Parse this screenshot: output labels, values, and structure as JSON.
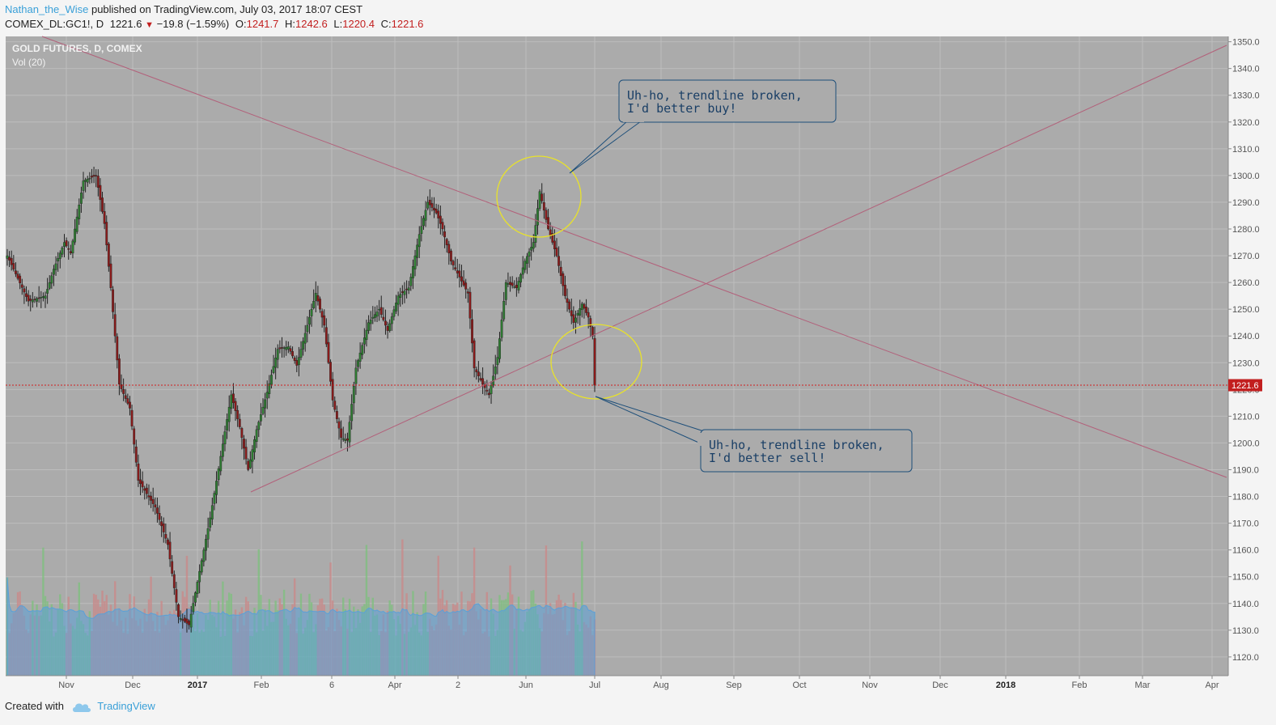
{
  "header": {
    "author": "Nathan_the_Wise",
    "published": "published on TradingView.com, July 03, 2017 18:07 CEST",
    "symbol": "COMEX_DL:GC1!, D",
    "last": "1221.6",
    "change": "−19.8 (−1.59%)",
    "open_label": "O:",
    "open": "1241.7",
    "high_label": "H:",
    "high": "1242.6",
    "low_label": "L:",
    "low": "1220.4",
    "close_label": "C:",
    "close": "1221.6"
  },
  "footer": {
    "created": "Created with",
    "brand": "TradingView"
  },
  "colors": {
    "up": "#2e7d32",
    "down": "#8b1a1a",
    "plot_bg": "#ababab",
    "trend": "#b2607a",
    "ellipse": "#e8e22a",
    "price_line": "#d21f1f",
    "volume_ma": "#5aa0d8"
  },
  "chart_data": {
    "type": "candlestick",
    "title": "GOLD FUTURES, D, COMEX",
    "indicator": "Vol (20)",
    "ylim": [
      1113,
      1352
    ],
    "y_ticks": [
      "1350.0",
      "1340.0",
      "1330.0",
      "1320.0",
      "1310.0",
      "1300.0",
      "1290.0",
      "1280.0",
      "1270.0",
      "1260.0",
      "1250.0",
      "1240.0",
      "1230.0",
      "1220.0",
      "1210.0",
      "1200.0",
      "1190.0",
      "1180.0",
      "1170.0",
      "1160.0",
      "1150.0",
      "1140.0",
      "1130.0",
      "1120.0"
    ],
    "x_ticks": [
      "Nov",
      "Dec",
      "2017",
      "Feb",
      "6",
      "Apr",
      "2",
      "Jun",
      "Jul",
      "Aug",
      "Sep",
      "Oct",
      "Nov",
      "Dec",
      "2018",
      "Feb",
      "Mar",
      "Apr"
    ],
    "x_ticks_bold": [
      "2017",
      "2018"
    ],
    "current_price": 1221.6,
    "current_price_label": "1221.6",
    "anchors": [
      {
        "x": 0,
        "y": 1270
      },
      {
        "x": 10,
        "y": 1253
      },
      {
        "x": 18,
        "y": 1255
      },
      {
        "x": 22,
        "y": 1265
      },
      {
        "x": 27,
        "y": 1275
      },
      {
        "x": 30,
        "y": 1271
      },
      {
        "x": 36,
        "y": 1298
      },
      {
        "x": 42,
        "y": 1300
      },
      {
        "x": 46,
        "y": 1282
      },
      {
        "x": 49,
        "y": 1258
      },
      {
        "x": 53,
        "y": 1222
      },
      {
        "x": 58,
        "y": 1213
      },
      {
        "x": 62,
        "y": 1186
      },
      {
        "x": 70,
        "y": 1176
      },
      {
        "x": 76,
        "y": 1162
      },
      {
        "x": 81,
        "y": 1135
      },
      {
        "x": 86,
        "y": 1132
      },
      {
        "x": 91,
        "y": 1152
      },
      {
        "x": 96,
        "y": 1172
      },
      {
        "x": 101,
        "y": 1195
      },
      {
        "x": 106,
        "y": 1218
      },
      {
        "x": 110,
        "y": 1206
      },
      {
        "x": 114,
        "y": 1190
      },
      {
        "x": 118,
        "y": 1205
      },
      {
        "x": 123,
        "y": 1219
      },
      {
        "x": 128,
        "y": 1235
      },
      {
        "x": 133,
        "y": 1236
      },
      {
        "x": 137,
        "y": 1229
      },
      {
        "x": 142,
        "y": 1244
      },
      {
        "x": 146,
        "y": 1256
      },
      {
        "x": 150,
        "y": 1244
      },
      {
        "x": 154,
        "y": 1216
      },
      {
        "x": 158,
        "y": 1202
      },
      {
        "x": 161,
        "y": 1201
      },
      {
        "x": 165,
        "y": 1228
      },
      {
        "x": 171,
        "y": 1245
      },
      {
        "x": 176,
        "y": 1250
      },
      {
        "x": 180,
        "y": 1242
      },
      {
        "x": 185,
        "y": 1255
      },
      {
        "x": 190,
        "y": 1258
      },
      {
        "x": 195,
        "y": 1278
      },
      {
        "x": 199,
        "y": 1290
      },
      {
        "x": 203,
        "y": 1286
      },
      {
        "x": 206,
        "y": 1280
      },
      {
        "x": 210,
        "y": 1268
      },
      {
        "x": 214,
        "y": 1262
      },
      {
        "x": 218,
        "y": 1256
      },
      {
        "x": 221,
        "y": 1228
      },
      {
        "x": 225,
        "y": 1222
      },
      {
        "x": 228,
        "y": 1218
      },
      {
        "x": 232,
        "y": 1232
      },
      {
        "x": 236,
        "y": 1260
      },
      {
        "x": 241,
        "y": 1258
      },
      {
        "x": 245,
        "y": 1268
      },
      {
        "x": 249,
        "y": 1275
      },
      {
        "x": 252,
        "y": 1294
      },
      {
        "x": 256,
        "y": 1280
      },
      {
        "x": 260,
        "y": 1270
      },
      {
        "x": 264,
        "y": 1255
      },
      {
        "x": 268,
        "y": 1245
      },
      {
        "x": 272,
        "y": 1252
      },
      {
        "x": 275,
        "y": 1247
      },
      {
        "x": 277,
        "y": 1240
      },
      {
        "x": 278,
        "y": 1221.6
      }
    ],
    "volume_max": 60
  },
  "annotations": [
    {
      "line1": "Uh-ho, trendline broken,",
      "line2": "I'd better buy!"
    },
    {
      "line1": "Uh-ho, trendline broken,",
      "line2": "I'd better sell!"
    }
  ]
}
